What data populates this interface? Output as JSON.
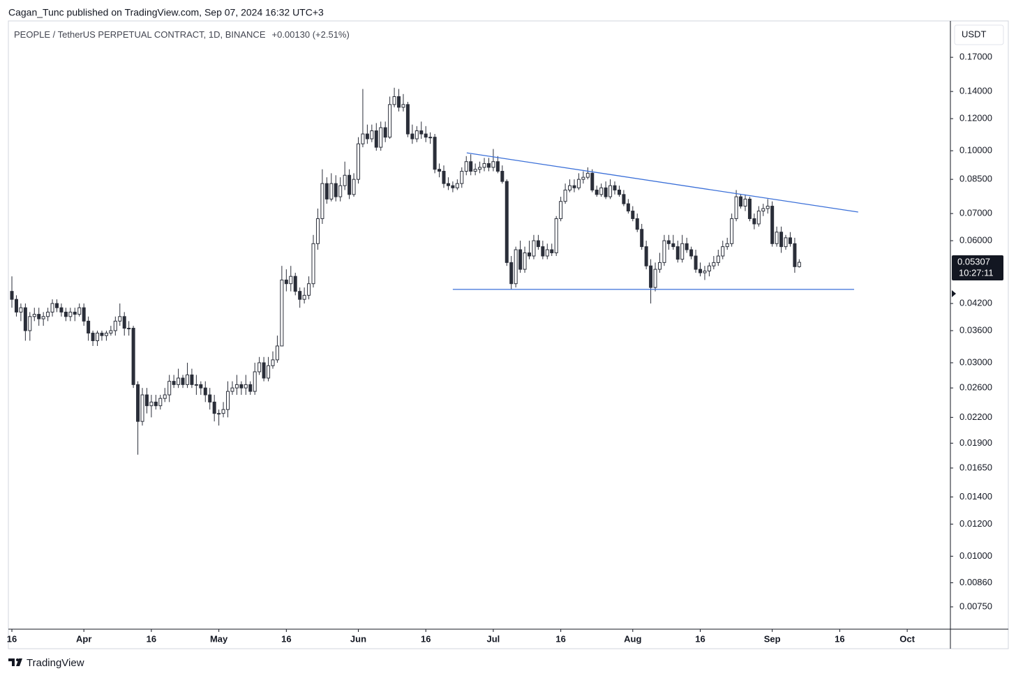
{
  "header_text": "Cagan_Tunc published on TradingView.com, Sep 07, 2024 16:32 UTC+3",
  "footer_text": "TradingView",
  "chart_data": {
    "type": "candlestick",
    "title": "PEOPLE / TetherUS PERPETUAL CONTRACT, 1D, BINANCE",
    "change": "+0.00130 (+2.51%)",
    "currency": "USDT",
    "price_label": 0.05307,
    "countdown": "10:27:11",
    "log_scale": true,
    "grid": false,
    "up_color": "#ffffff",
    "down_color": "#2a2e39",
    "wick_color": "#2a2e39",
    "line_color": "#3a6fd8",
    "xlim": [
      -0.78,
      208.6
    ],
    "xticks": [
      {
        "value": 0,
        "label": "16"
      },
      {
        "value": 16,
        "label": "Apr"
      },
      {
        "value": 31,
        "label": "16"
      },
      {
        "value": 46,
        "label": "May"
      },
      {
        "value": 61,
        "label": "16"
      },
      {
        "value": 77,
        "label": "Jun"
      },
      {
        "value": 92,
        "label": "16"
      },
      {
        "value": 107,
        "label": "Jul"
      },
      {
        "value": 122,
        "label": "16"
      },
      {
        "value": 138,
        "label": "Aug"
      },
      {
        "value": 153,
        "label": "16"
      },
      {
        "value": 169,
        "label": "Sep"
      },
      {
        "value": 184,
        "label": "16"
      },
      {
        "value": 199,
        "label": "Oct"
      }
    ],
    "ylim": [
      0.00666,
      0.209
    ],
    "yticks": [
      {
        "value": 0.17,
        "label": "0.17000"
      },
      {
        "value": 0.14,
        "label": "0.14000"
      },
      {
        "value": 0.12,
        "label": "0.12000"
      },
      {
        "value": 0.1,
        "label": "0.10000"
      },
      {
        "value": 0.085,
        "label": "0.08500"
      },
      {
        "value": 0.07,
        "label": "0.07000"
      },
      {
        "value": 0.06,
        "label": "0.06000"
      },
      {
        "value": 0.042,
        "label": "0.04200"
      },
      {
        "value": 0.036,
        "label": "0.03600"
      },
      {
        "value": 0.03,
        "label": "0.03000"
      },
      {
        "value": 0.026,
        "label": "0.02600"
      },
      {
        "value": 0.022,
        "label": "0.02200"
      },
      {
        "value": 0.019,
        "label": "0.01900"
      },
      {
        "value": 0.0165,
        "label": "0.01650"
      },
      {
        "value": 0.014,
        "label": "0.01400"
      },
      {
        "value": 0.012,
        "label": "0.01200"
      },
      {
        "value": 0.01,
        "label": "0.01000"
      },
      {
        "value": 0.0086,
        "label": "0.00860"
      },
      {
        "value": 0.0075,
        "label": "0.00750"
      }
    ],
    "open": [
      0.045,
      0.043,
      0.04,
      0.041,
      0.036,
      0.039,
      0.0395,
      0.0385,
      0.039,
      0.04,
      0.042,
      0.041,
      0.04,
      0.039,
      0.04,
      0.0395,
      0.041,
      0.038,
      0.0355,
      0.034,
      0.0355,
      0.035,
      0.0355,
      0.036,
      0.038,
      0.039,
      0.0365,
      0.0365,
      0.0265,
      0.0215,
      0.025,
      0.0235,
      0.024,
      0.0235,
      0.0245,
      0.025,
      0.027,
      0.0265,
      0.0275,
      0.0265,
      0.028,
      0.0265,
      0.0265,
      0.026,
      0.025,
      0.024,
      0.0225,
      0.0225,
      0.023,
      0.0255,
      0.026,
      0.0265,
      0.026,
      0.0265,
      0.0255,
      0.0285,
      0.03,
      0.0275,
      0.0295,
      0.0305,
      0.033,
      0.048,
      0.047,
      0.049,
      0.045,
      0.043,
      0.044,
      0.047,
      0.059,
      0.068,
      0.083,
      0.076,
      0.083,
      0.077,
      0.082,
      0.087,
      0.078,
      0.085,
      0.104,
      0.11,
      0.107,
      0.112,
      0.102,
      0.114,
      0.108,
      0.13,
      0.136,
      0.128,
      0.13,
      0.11,
      0.107,
      0.112,
      0.11,
      0.108,
      0.108,
      0.09,
      0.089,
      0.083,
      0.082,
      0.081,
      0.083,
      0.089,
      0.094,
      0.089,
      0.09,
      0.091,
      0.093,
      0.091,
      0.094,
      0.089,
      0.084,
      0.053,
      0.047,
      0.057,
      0.051,
      0.056,
      0.055,
      0.06,
      0.058,
      0.055,
      0.057,
      0.056,
      0.068,
      0.075,
      0.08,
      0.082,
      0.081,
      0.085,
      0.086,
      0.088,
      0.08,
      0.078,
      0.081,
      0.077,
      0.082,
      0.08,
      0.078,
      0.074,
      0.071,
      0.068,
      0.064,
      0.058,
      0.052,
      0.046,
      0.051,
      0.053,
      0.06,
      0.059,
      0.058,
      0.054,
      0.059,
      0.057,
      0.055,
      0.051,
      0.05,
      0.0505,
      0.052,
      0.053,
      0.055,
      0.058,
      0.059,
      0.068,
      0.077,
      0.073,
      0.076,
      0.068,
      0.066,
      0.071,
      0.072,
      0.073,
      0.059,
      0.063,
      0.058,
      0.061,
      0.059,
      0.05177
    ],
    "high": [
      0.049,
      0.044,
      0.042,
      0.042,
      0.04,
      0.041,
      0.041,
      0.04,
      0.041,
      0.043,
      0.043,
      0.042,
      0.041,
      0.041,
      0.041,
      0.042,
      0.042,
      0.039,
      0.036,
      0.036,
      0.036,
      0.036,
      0.037,
      0.039,
      0.042,
      0.04,
      0.038,
      0.037,
      0.027,
      0.026,
      0.026,
      0.025,
      0.025,
      0.025,
      0.026,
      0.028,
      0.028,
      0.029,
      0.028,
      0.03,
      0.029,
      0.028,
      0.027,
      0.027,
      0.026,
      0.025,
      0.023,
      0.024,
      0.027,
      0.027,
      0.028,
      0.027,
      0.028,
      0.027,
      0.03,
      0.031,
      0.031,
      0.031,
      0.032,
      0.035,
      0.052,
      0.051,
      0.052,
      0.05,
      0.046,
      0.046,
      0.049,
      0.062,
      0.072,
      0.09,
      0.086,
      0.088,
      0.087,
      0.086,
      0.094,
      0.09,
      0.088,
      0.108,
      0.142,
      0.116,
      0.116,
      0.117,
      0.118,
      0.118,
      0.136,
      0.143,
      0.142,
      0.138,
      0.132,
      0.116,
      0.115,
      0.118,
      0.115,
      0.111,
      0.11,
      0.093,
      0.092,
      0.086,
      0.084,
      0.085,
      0.091,
      0.097,
      0.098,
      0.093,
      0.094,
      0.096,
      0.096,
      0.101,
      0.097,
      0.092,
      0.085,
      0.055,
      0.058,
      0.06,
      0.058,
      0.06,
      0.062,
      0.062,
      0.06,
      0.059,
      0.059,
      0.069,
      0.077,
      0.083,
      0.085,
      0.085,
      0.088,
      0.089,
      0.091,
      0.09,
      0.082,
      0.083,
      0.084,
      0.085,
      0.084,
      0.082,
      0.08,
      0.076,
      0.073,
      0.07,
      0.066,
      0.06,
      0.054,
      0.053,
      0.056,
      0.062,
      0.062,
      0.062,
      0.06,
      0.062,
      0.061,
      0.058,
      0.057,
      0.053,
      0.052,
      0.053,
      0.055,
      0.057,
      0.06,
      0.061,
      0.07,
      0.08,
      0.078,
      0.078,
      0.077,
      0.07,
      0.073,
      0.074,
      0.076,
      0.075,
      0.065,
      0.065,
      0.062,
      0.063,
      0.061,
      0.054
    ],
    "low": [
      0.041,
      0.039,
      0.038,
      0.034,
      0.034,
      0.038,
      0.037,
      0.037,
      0.038,
      0.039,
      0.04,
      0.039,
      0.038,
      0.038,
      0.038,
      0.039,
      0.037,
      0.034,
      0.033,
      0.033,
      0.034,
      0.034,
      0.035,
      0.035,
      0.037,
      0.035,
      0.035,
      0.026,
      0.0178,
      0.021,
      0.0225,
      0.022,
      0.023,
      0.023,
      0.024,
      0.024,
      0.026,
      0.026,
      0.026,
      0.026,
      0.026,
      0.025,
      0.025,
      0.024,
      0.023,
      0.0215,
      0.021,
      0.022,
      0.022,
      0.025,
      0.025,
      0.025,
      0.025,
      0.025,
      0.025,
      0.028,
      0.027,
      0.027,
      0.029,
      0.03,
      0.033,
      0.045,
      0.045,
      0.044,
      0.041,
      0.042,
      0.043,
      0.046,
      0.057,
      0.066,
      0.074,
      0.075,
      0.075,
      0.075,
      0.08,
      0.076,
      0.077,
      0.083,
      0.102,
      0.104,
      0.105,
      0.1,
      0.1,
      0.105,
      0.107,
      0.128,
      0.125,
      0.125,
      0.108,
      0.104,
      0.105,
      0.107,
      0.105,
      0.104,
      0.088,
      0.086,
      0.081,
      0.08,
      0.079,
      0.08,
      0.081,
      0.087,
      0.087,
      0.087,
      0.088,
      0.089,
      0.089,
      0.089,
      0.088,
      0.083,
      0.052,
      0.0455,
      0.046,
      0.05,
      0.05,
      0.054,
      0.054,
      0.057,
      0.054,
      0.054,
      0.055,
      0.055,
      0.067,
      0.074,
      0.079,
      0.079,
      0.08,
      0.083,
      0.085,
      0.079,
      0.077,
      0.077,
      0.076,
      0.076,
      0.078,
      0.077,
      0.073,
      0.07,
      0.067,
      0.063,
      0.057,
      0.051,
      0.042,
      0.045,
      0.05,
      0.052,
      0.057,
      0.057,
      0.053,
      0.053,
      0.056,
      0.054,
      0.05,
      0.049,
      0.048,
      0.049,
      0.051,
      0.052,
      0.054,
      0.057,
      0.058,
      0.067,
      0.072,
      0.071,
      0.067,
      0.064,
      0.065,
      0.069,
      0.07,
      0.058,
      0.058,
      0.056,
      0.057,
      0.058,
      0.05,
      0.0515
    ],
    "close": [
      0.043,
      0.04,
      0.041,
      0.036,
      0.039,
      0.0395,
      0.0385,
      0.039,
      0.04,
      0.042,
      0.041,
      0.04,
      0.039,
      0.04,
      0.0395,
      0.041,
      0.038,
      0.0355,
      0.034,
      0.0355,
      0.035,
      0.0355,
      0.036,
      0.038,
      0.039,
      0.0365,
      0.0365,
      0.0265,
      0.0215,
      0.025,
      0.0235,
      0.024,
      0.0235,
      0.0245,
      0.025,
      0.027,
      0.0265,
      0.0275,
      0.0265,
      0.028,
      0.0265,
      0.0265,
      0.026,
      0.025,
      0.024,
      0.0225,
      0.0225,
      0.023,
      0.0255,
      0.026,
      0.0265,
      0.026,
      0.0265,
      0.0255,
      0.0285,
      0.03,
      0.0275,
      0.0295,
      0.0305,
      0.033,
      0.048,
      0.047,
      0.049,
      0.045,
      0.043,
      0.044,
      0.047,
      0.059,
      0.068,
      0.083,
      0.076,
      0.083,
      0.077,
      0.082,
      0.087,
      0.078,
      0.085,
      0.104,
      0.11,
      0.107,
      0.112,
      0.102,
      0.114,
      0.108,
      0.13,
      0.136,
      0.128,
      0.13,
      0.11,
      0.107,
      0.112,
      0.11,
      0.108,
      0.108,
      0.09,
      0.089,
      0.083,
      0.082,
      0.081,
      0.083,
      0.089,
      0.094,
      0.089,
      0.09,
      0.091,
      0.093,
      0.091,
      0.094,
      0.089,
      0.084,
      0.053,
      0.047,
      0.057,
      0.051,
      0.056,
      0.055,
      0.06,
      0.058,
      0.055,
      0.057,
      0.056,
      0.068,
      0.075,
      0.08,
      0.082,
      0.081,
      0.085,
      0.086,
      0.088,
      0.08,
      0.078,
      0.081,
      0.077,
      0.082,
      0.08,
      0.078,
      0.074,
      0.071,
      0.068,
      0.064,
      0.058,
      0.052,
      0.046,
      0.051,
      0.053,
      0.06,
      0.059,
      0.058,
      0.054,
      0.059,
      0.057,
      0.055,
      0.051,
      0.05,
      0.0505,
      0.052,
      0.053,
      0.055,
      0.058,
      0.059,
      0.068,
      0.077,
      0.073,
      0.076,
      0.068,
      0.066,
      0.071,
      0.072,
      0.073,
      0.059,
      0.063,
      0.058,
      0.061,
      0.059,
      0.05177,
      0.05307
    ],
    "trendlines": [
      {
        "x": [
          101.1,
          188.1
        ],
        "values": [
          0.0988,
          0.0706
        ]
      },
      {
        "x": [
          98,
          187.2
        ],
        "values": [
          0.0455,
          0.0455
        ]
      }
    ]
  }
}
